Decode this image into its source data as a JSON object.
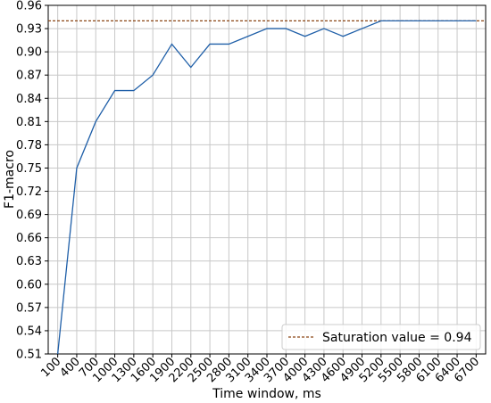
{
  "chart_data": {
    "type": "line",
    "xlabel": "Time window, ms",
    "ylabel": "F1-macro",
    "x": [
      100,
      400,
      700,
      1000,
      1300,
      1600,
      1900,
      2200,
      2500,
      2800,
      3100,
      3400,
      3700,
      4000,
      4300,
      4600,
      4900,
      5200,
      5500,
      5800,
      6100,
      6400,
      6700
    ],
    "x_tick_labels": [
      "100",
      "400",
      "700",
      "1000",
      "1300",
      "1600",
      "1900",
      "2200",
      "2500",
      "2800",
      "3100",
      "3400",
      "3700",
      "4000",
      "4300",
      "4600",
      "4900",
      "5200",
      "5500",
      "5800",
      "6100",
      "6400",
      "6700"
    ],
    "series": [
      {
        "values": [
          0.51,
          0.75,
          0.81,
          0.85,
          0.85,
          0.87,
          0.91,
          0.88,
          0.91,
          0.91,
          0.92,
          0.93,
          0.93,
          0.92,
          0.93,
          0.92,
          0.93,
          0.94,
          0.94,
          0.94,
          0.94,
          0.94,
          0.94
        ],
        "color": "#1f5fa8"
      }
    ],
    "reference_line": {
      "value": 0.94,
      "label": "Saturation value = 0.94",
      "color": "#8b4513",
      "style": "dashed"
    },
    "y_ticks": [
      0.51,
      0.54,
      0.57,
      0.6,
      0.63,
      0.66,
      0.69,
      0.72,
      0.75,
      0.78,
      0.81,
      0.84,
      0.87,
      0.9,
      0.93,
      0.96
    ],
    "y_tick_labels": [
      "0.51",
      "0.54",
      "0.57",
      "0.60",
      "0.63",
      "0.66",
      "0.69",
      "0.72",
      "0.75",
      "0.78",
      "0.81",
      "0.84",
      "0.87",
      "0.90",
      "0.93",
      "0.96"
    ],
    "ylim": [
      0.51,
      0.96
    ],
    "xlim": [
      -50,
      6850
    ],
    "grid": true,
    "legend_position": "bottom-right"
  }
}
